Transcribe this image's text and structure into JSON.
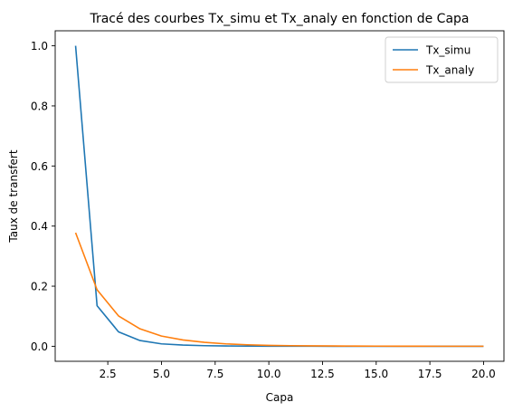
{
  "chart_data": {
    "type": "line",
    "title": "Tracé des courbes Tx_simu et Tx_analy en fonction de Capa",
    "xlabel": "Capa",
    "ylabel": "Taux de transfert",
    "xlim": [
      0.05,
      20.95
    ],
    "ylim": [
      -0.05,
      1.05
    ],
    "xticks": [
      2.5,
      5.0,
      7.5,
      10.0,
      12.5,
      15.0,
      17.5,
      20.0
    ],
    "xtick_labels": [
      "2.5",
      "5.0",
      "7.5",
      "10.0",
      "12.5",
      "15.0",
      "17.5",
      "20.0"
    ],
    "yticks": [
      0.0,
      0.2,
      0.4,
      0.6,
      0.8,
      1.0
    ],
    "ytick_labels": [
      "0.0",
      "0.2",
      "0.4",
      "0.6",
      "0.8",
      "1.0"
    ],
    "grid": false,
    "legend_position": "top-right",
    "x": [
      1,
      2,
      3,
      4,
      5,
      6,
      7,
      8,
      9,
      10,
      11,
      12,
      13,
      14,
      15,
      16,
      17,
      18,
      19,
      20
    ],
    "series": [
      {
        "name": "Tx_simu",
        "color": "#1f77b4",
        "values": [
          1.0,
          0.135,
          0.048,
          0.019,
          0.008,
          0.004,
          0.002,
          0.001,
          0.0005,
          0.0003,
          0.0002,
          0.0001,
          0.0,
          0.0,
          0.0,
          0.0,
          0.0,
          0.0,
          0.0,
          0.0
        ]
      },
      {
        "name": "Tx_analy",
        "color": "#ff7f0e",
        "values": [
          0.378,
          0.188,
          0.101,
          0.058,
          0.034,
          0.021,
          0.013,
          0.008,
          0.005,
          0.003,
          0.002,
          0.0015,
          0.001,
          0.0007,
          0.0005,
          0.0003,
          0.0002,
          0.0001,
          0.0001,
          0.0001
        ]
      }
    ]
  }
}
